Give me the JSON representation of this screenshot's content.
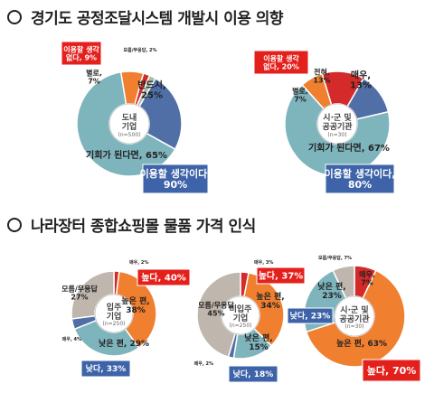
{
  "sections": [
    {
      "title": "경기도 공정조달시스템 개발시 이용 의향"
    },
    {
      "title": "나라장터 종합쇼핑몰 물품 가격 인식"
    }
  ],
  "colors": {
    "blue": "#4f6fa6",
    "teal": "#7eb4bc",
    "orange": "#f07f2f",
    "red": "#d42a2a",
    "gray": "#bfb6ad",
    "sage": "#a9bca6",
    "callout_blue": "#3e63a8",
    "callout_red": "#e4201c"
  },
  "chart_data": [
    {
      "type": "pie",
      "center_label": "도내\n기업",
      "n_label": "(n=500)",
      "slices": [
        {
          "label": "반드시",
          "value": 25,
          "text": "반드시,\n25%"
        },
        {
          "label": "기회가 된다면",
          "value": 65,
          "text": "기회가 된다면, 65%"
        },
        {
          "label": "별로",
          "value": 7,
          "text": "별로,\n7%"
        },
        {
          "label": "전혀",
          "value": 2,
          "text": "전혀, 2%"
        },
        {
          "label": "모름/무응답",
          "value": 2,
          "text": "모름/무응답, 2%"
        }
      ],
      "callouts": [
        {
          "text": "이용할 생각\n없다, 9%"
        },
        {
          "text": "이용할 생각이다,\n90%"
        }
      ]
    },
    {
      "type": "pie",
      "center_label": "시·군 및\n공공기관",
      "n_label": "(n=30)",
      "slices": [
        {
          "label": "매우",
          "value": 13,
          "text": "매우,\n13%"
        },
        {
          "label": "기회가 된다면",
          "value": 67,
          "text": "기회가 된다면, 67%"
        },
        {
          "label": "별로",
          "value": 7,
          "text": "별로,\n7%"
        },
        {
          "label": "전혀",
          "value": 13,
          "text": "전혀,\n13%"
        }
      ],
      "callouts": [
        {
          "text": "이용할 생각\n없다, 20%"
        },
        {
          "text": "이용할 생각이다,\n80%"
        }
      ]
    },
    {
      "type": "pie",
      "center_label": "입주\n기업",
      "n_label": "(n=250)",
      "slices": [
        {
          "label": "매우",
          "value": 2,
          "text": "매우, 2%"
        },
        {
          "label": "높은 편",
          "value": 38,
          "text": "높은 편,\n38%"
        },
        {
          "label": "낮은 편",
          "value": 29,
          "text": "낮은 편, 29%"
        },
        {
          "label": "매우",
          "value": 4,
          "text": "매우, 4%"
        },
        {
          "label": "모름/무응답",
          "value": 27,
          "text": "모름/무응답\n27%"
        }
      ],
      "callouts": [
        {
          "text": "높다, 40%"
        },
        {
          "text": "낮다, 33%"
        }
      ]
    },
    {
      "type": "pie",
      "center_label": "미입주\n기업",
      "n_label": "(n=250)",
      "slices": [
        {
          "label": "매우",
          "value": 3,
          "text": "매우, 3%"
        },
        {
          "label": "높은 편",
          "value": 34,
          "text": "높은 편,\n34%"
        },
        {
          "label": "낮은 편",
          "value": 15,
          "text": "낮은 편,\n15%"
        },
        {
          "label": "매우",
          "value": 2,
          "text": "매우, 2%"
        },
        {
          "label": "모름/무응답",
          "value": 45,
          "text": "모름/무응답\n45%"
        }
      ],
      "callouts": [
        {
          "text": "높다, 37%"
        },
        {
          "text": "낮다, 18%"
        }
      ]
    },
    {
      "type": "pie",
      "center_label": "시·군 및\n공공기관",
      "n_label": "(n=30)",
      "slices": [
        {
          "label": "매우",
          "value": 7,
          "text": "매우,\n7%"
        },
        {
          "label": "높은 편",
          "value": 63,
          "text": "높은 편, 63%"
        },
        {
          "label": "낮은 편",
          "value": 23,
          "text": "낮은 편,\n23%"
        },
        {
          "label": "모름/무응답",
          "value": 7,
          "text": "모름/무응답, 7%"
        }
      ],
      "callouts": [
        {
          "text": "낮다, 23%"
        },
        {
          "text": "높다, 70%"
        }
      ]
    }
  ]
}
